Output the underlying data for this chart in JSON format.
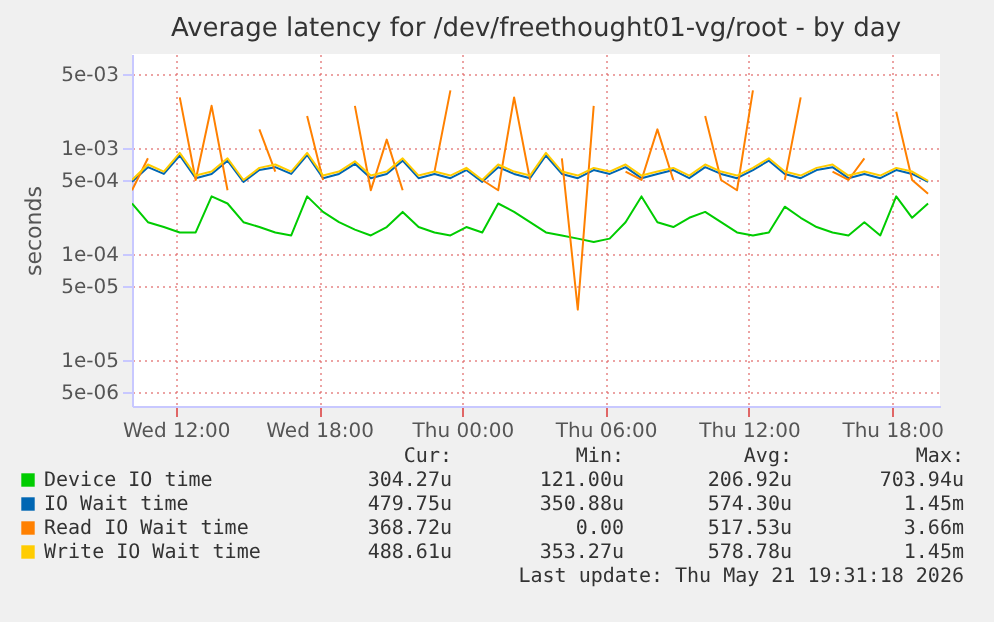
{
  "chart_data": {
    "type": "line",
    "title": "Average latency for /dev/freethought01-vg/root - by day",
    "ylabel": "seconds",
    "log": "y",
    "grid": true,
    "legend": "bottom",
    "ylim": [
      3.7e-06,
      0.0077
    ],
    "yticks": [
      {
        "value": 0.005,
        "label": "5e-03"
      },
      {
        "value": 0.001,
        "label": "1e-03"
      },
      {
        "value": 0.0005,
        "label": "5e-04"
      },
      {
        "value": 0.0001,
        "label": "1e-04"
      },
      {
        "value": 5e-05,
        "label": "5e-05"
      },
      {
        "value": 1e-05,
        "label": "1e-05"
      },
      {
        "value": 5e-06,
        "label": "5e-06"
      }
    ],
    "xlim": [
      "2026-05-20T10:10",
      "2026-05-21T20:00"
    ],
    "xticks": [
      {
        "value": "2026-05-20T12:00",
        "label": "Wed 12:00"
      },
      {
        "value": "2026-05-20T18:00",
        "label": "Wed 18:00"
      },
      {
        "value": "2026-05-21T00:00",
        "label": "Thu 00:00"
      },
      {
        "value": "2026-05-21T06:00",
        "label": "Thu 06:00"
      },
      {
        "value": "2026-05-21T12:00",
        "label": "Thu 12:00"
      },
      {
        "value": "2026-05-21T18:00",
        "label": "Thu 18:00"
      }
    ],
    "x": [
      "2026-05-20T10:10",
      "2026-05-20T10:50",
      "2026-05-20T11:30",
      "2026-05-20T12:10",
      "2026-05-20T12:50",
      "2026-05-20T13:30",
      "2026-05-20T14:10",
      "2026-05-20T14:50",
      "2026-05-20T15:30",
      "2026-05-20T16:10",
      "2026-05-20T16:50",
      "2026-05-20T17:30",
      "2026-05-20T18:10",
      "2026-05-20T18:50",
      "2026-05-20T19:30",
      "2026-05-20T20:10",
      "2026-05-20T20:50",
      "2026-05-20T21:30",
      "2026-05-20T22:10",
      "2026-05-20T22:50",
      "2026-05-20T23:30",
      "2026-05-21T00:10",
      "2026-05-21T00:50",
      "2026-05-21T01:30",
      "2026-05-21T02:10",
      "2026-05-21T02:50",
      "2026-05-21T03:30",
      "2026-05-21T04:10",
      "2026-05-21T04:50",
      "2026-05-21T05:30",
      "2026-05-21T06:10",
      "2026-05-21T06:50",
      "2026-05-21T07:30",
      "2026-05-21T08:10",
      "2026-05-21T08:50",
      "2026-05-21T09:30",
      "2026-05-21T10:10",
      "2026-05-21T10:50",
      "2026-05-21T11:30",
      "2026-05-21T12:10",
      "2026-05-21T12:50",
      "2026-05-21T13:30",
      "2026-05-21T14:10",
      "2026-05-21T14:50",
      "2026-05-21T15:30",
      "2026-05-21T16:10",
      "2026-05-21T16:50",
      "2026-05-21T17:30",
      "2026-05-21T18:10",
      "2026-05-21T18:50",
      "2026-05-21T19:30"
    ],
    "series": [
      {
        "name": "Device IO time",
        "color": "#00cc00",
        "values": [
          0.0003,
          0.0002,
          0.00018,
          0.00016,
          0.00016,
          0.00035,
          0.0003,
          0.0002,
          0.00018,
          0.00016,
          0.00015,
          0.00035,
          0.00025,
          0.0002,
          0.00017,
          0.00015,
          0.00018,
          0.00025,
          0.00018,
          0.00016,
          0.00015,
          0.00018,
          0.00016,
          0.0003,
          0.00025,
          0.0002,
          0.00016,
          0.00015,
          0.00014,
          0.00013,
          0.00014,
          0.0002,
          0.00035,
          0.0002,
          0.00018,
          0.00022,
          0.00025,
          0.0002,
          0.00016,
          0.00015,
          0.00016,
          0.00028,
          0.00022,
          0.00018,
          0.00016,
          0.00015,
          0.0002,
          0.00015,
          0.00035,
          0.00022,
          0.0003
        ]
      },
      {
        "name": "IO Wait time",
        "color": "#0066b3",
        "values": [
          0.00048,
          0.00066,
          0.00057,
          0.00085,
          0.00052,
          0.00057,
          0.00076,
          0.00048,
          0.00062,
          0.00066,
          0.00057,
          0.00086,
          0.00052,
          0.00057,
          0.00071,
          0.00052,
          0.00057,
          0.00076,
          0.00052,
          0.00057,
          0.00052,
          0.00062,
          0.00048,
          0.00066,
          0.00057,
          0.00052,
          0.00085,
          0.00057,
          0.00052,
          0.00062,
          0.00057,
          0.00066,
          0.00052,
          0.00057,
          0.00062,
          0.00052,
          0.00066,
          0.00057,
          0.00052,
          0.00062,
          0.00076,
          0.00057,
          0.00052,
          0.00062,
          0.00066,
          0.00052,
          0.00057,
          0.00052,
          0.00062,
          0.00057,
          0.00048
        ]
      },
      {
        "name": "Read IO Wait time",
        "color": "#ff8000",
        "values": [
          0.0004,
          0.0008,
          null,
          0.003,
          0.0005,
          0.0025,
          0.0004,
          null,
          0.0015,
          0.0006,
          null,
          0.002,
          0.0005,
          null,
          0.0025,
          0.0004,
          0.0012,
          0.0004,
          null,
          0.0006,
          0.0035,
          null,
          0.0005,
          0.0004,
          0.003,
          0.0005,
          null,
          0.0008,
          3e-05,
          0.0025,
          null,
          0.0006,
          0.0005,
          0.0015,
          0.0005,
          null,
          0.002,
          0.0005,
          0.0004,
          0.0035,
          null,
          0.0005,
          0.003,
          null,
          0.0006,
          0.0005,
          0.0008,
          null,
          0.0022,
          0.0005,
          0.00037
        ]
      },
      {
        "name": "Write IO Wait time",
        "color": "#ffcc00",
        "values": [
          0.0005,
          0.0007,
          0.0006,
          0.0009,
          0.00055,
          0.0006,
          0.0008,
          0.0005,
          0.00065,
          0.0007,
          0.0006,
          0.0009,
          0.00055,
          0.0006,
          0.00075,
          0.00055,
          0.0006,
          0.0008,
          0.00055,
          0.0006,
          0.00055,
          0.00065,
          0.0005,
          0.0007,
          0.0006,
          0.00055,
          0.0009,
          0.0006,
          0.00055,
          0.00065,
          0.0006,
          0.0007,
          0.00055,
          0.0006,
          0.00065,
          0.00055,
          0.0007,
          0.0006,
          0.00055,
          0.00065,
          0.0008,
          0.0006,
          0.00055,
          0.00065,
          0.0007,
          0.00055,
          0.0006,
          0.00055,
          0.00065,
          0.0006,
          0.00049
        ]
      }
    ],
    "annotations": [
      "Cur:",
      "Min:",
      "Avg:",
      "Max:",
      "304.27u",
      "121.00u",
      "206.92u",
      "703.94u",
      "479.75u",
      "350.88u",
      "574.30u",
      "1.45m",
      "368.72u",
      "0.00",
      "517.53u",
      "3.66m",
      "488.61u",
      "353.27u",
      "578.78u",
      "1.45m",
      "Last update: Thu May 21 19:31:18 2026"
    ]
  }
}
